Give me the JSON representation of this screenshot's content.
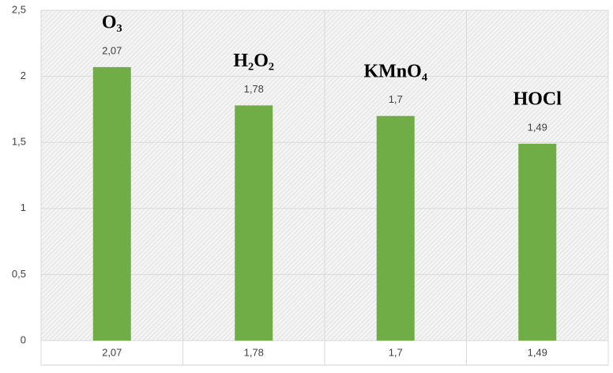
{
  "chart_data": {
    "type": "bar",
    "categories": [
      "O₃",
      "H₂O₂",
      "KMnO₄",
      "HOCl"
    ],
    "values": [
      2.07,
      1.78,
      1.7,
      1.49
    ],
    "value_labels": [
      "2,07",
      "1,78",
      "1,7",
      "1,49"
    ],
    "color": "#70ad47",
    "ylim": [
      0,
      2.5
    ],
    "yticks": [
      0,
      {
        "value": 0.5,
        "label": "0,5"
      },
      1,
      {
        "value": 1.5,
        "label": "1,5"
      },
      2,
      {
        "value": 2.5,
        "label": "2,5"
      }
    ],
    "grid": true
  }
}
